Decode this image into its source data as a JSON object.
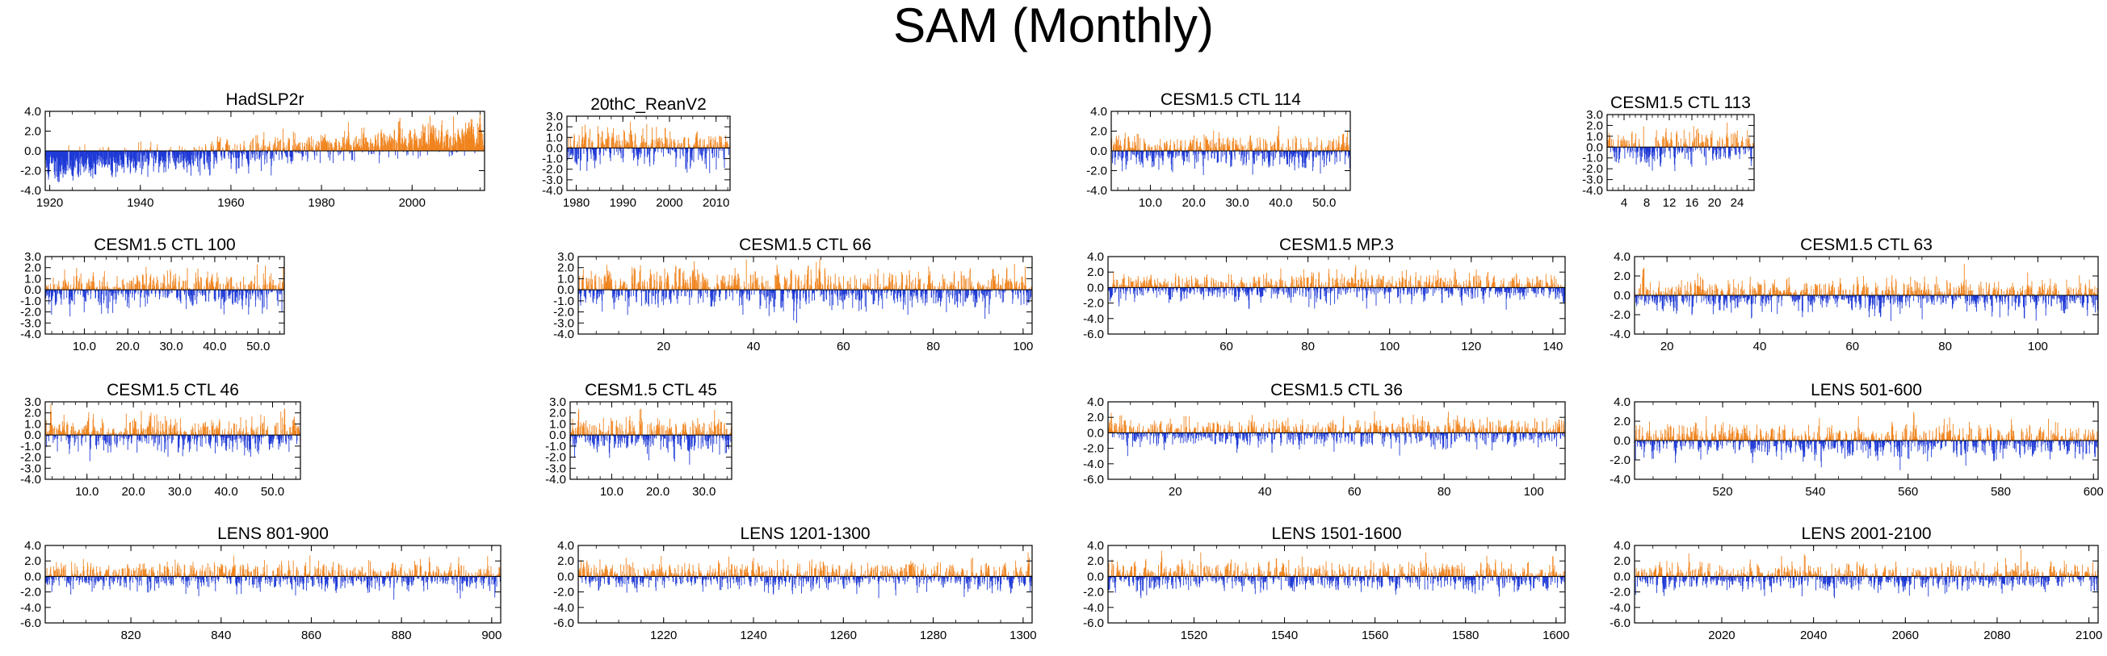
{
  "title": "SAM (Monthly)",
  "colors": {
    "positive": "#f0841e",
    "negative": "#1f3ad6",
    "axis": "#000000"
  },
  "chart_data": [
    {
      "type": "bar",
      "title": "HadSLP2r",
      "ylim": [
        -4,
        4
      ],
      "yticks": [
        "4.0",
        "2.0",
        "0.0",
        "-2.0",
        "-4.0"
      ],
      "xlim": [
        1919,
        2016
      ],
      "xticks": [
        1920,
        1940,
        1960,
        1980,
        2000
      ],
      "xticklabels": [
        "1920",
        "1940",
        "1960",
        "1980",
        "2000"
      ],
      "trend": 0.022,
      "amp": 0.75,
      "seed": 11,
      "n": 1150
    },
    {
      "type": "bar",
      "title": "20thC_ReanV2",
      "ylim": [
        -4,
        3
      ],
      "yticks": [
        "3.0",
        "2.0",
        "1.0",
        "0.0",
        "-1.0",
        "-2.0",
        "-3.0",
        "-4.0"
      ],
      "xlim": [
        1978,
        2013
      ],
      "xticks": [
        1980,
        1990,
        2000,
        2010
      ],
      "xticklabels": [
        "1980",
        "1990",
        "2000",
        "2010"
      ],
      "trend": 0.0,
      "amp": 0.8,
      "seed": 23,
      "n": 420
    },
    {
      "type": "bar",
      "title": "CESM1.5 CTL 114",
      "ylim": [
        -4,
        4
      ],
      "yticks": [
        "4.0",
        "2.0",
        "0.0",
        "-2.0",
        "-4.0"
      ],
      "xlim": [
        1,
        56
      ],
      "xticks": [
        10,
        20,
        30,
        40,
        50
      ],
      "xticklabels": [
        "10.0",
        "20.0",
        "30.0",
        "40.0",
        "50.0"
      ],
      "trend": 0.0,
      "amp": 0.8,
      "seed": 37,
      "n": 660
    },
    {
      "type": "bar",
      "title": "CESM1.5 CTL 113",
      "ylim": [
        -4,
        3
      ],
      "yticks": [
        "3.0",
        "2.0",
        "1.0",
        "0.0",
        "-1.0",
        "-2.0",
        "-3.0",
        "-4.0"
      ],
      "xlim": [
        1,
        27
      ],
      "xticks": [
        4,
        8,
        12,
        16,
        20,
        24
      ],
      "xticklabels": [
        "4",
        "8",
        "12",
        "16",
        "20",
        "24"
      ],
      "trend": 0.0,
      "amp": 0.8,
      "seed": 41,
      "n": 320
    },
    {
      "type": "bar",
      "title": "CESM1.5 CTL 100",
      "ylim": [
        -4,
        3
      ],
      "yticks": [
        "3.0",
        "2.0",
        "1.0",
        "0.0",
        "-1.0",
        "-2.0",
        "-3.0",
        "-4.0"
      ],
      "xlim": [
        1,
        56
      ],
      "xticks": [
        10,
        20,
        30,
        40,
        50
      ],
      "xticklabels": [
        "10.0",
        "20.0",
        "30.0",
        "40.0",
        "50.0"
      ],
      "trend": 0.0,
      "amp": 0.8,
      "seed": 53,
      "n": 660
    },
    {
      "type": "bar",
      "title": "CESM1.5 CTL 66",
      "ylim": [
        -4,
        3
      ],
      "yticks": [
        "3.0",
        "2.0",
        "1.0",
        "0.0",
        "-1.0",
        "-2.0",
        "-3.0",
        "-4.0"
      ],
      "xlim": [
        1,
        102
      ],
      "xticks": [
        20,
        40,
        60,
        80,
        100
      ],
      "xticklabels": [
        "20",
        "40",
        "60",
        "80",
        "100"
      ],
      "trend": 0.0,
      "amp": 0.8,
      "seed": 67,
      "n": 1200
    },
    {
      "type": "bar",
      "title": "CESM1.5 MP.3",
      "ylim": [
        -6,
        4
      ],
      "yticks": [
        "4.0",
        "2.0",
        "0.0",
        "-2.0",
        "-4.0",
        "-6.0"
      ],
      "xlim": [
        31,
        143
      ],
      "xticks": [
        60,
        80,
        100,
        120,
        140
      ],
      "xticklabels": [
        "60",
        "80",
        "100",
        "120",
        "140"
      ],
      "trend": 0.0,
      "amp": 0.85,
      "seed": 71,
      "n": 1300
    },
    {
      "type": "bar",
      "title": "CESM1.5 CTL 63",
      "ylim": [
        -4,
        4
      ],
      "yticks": [
        "4.0",
        "2.0",
        "0.0",
        "-2.0",
        "-4.0"
      ],
      "xlim": [
        13,
        113
      ],
      "xticks": [
        20,
        40,
        60,
        80,
        100
      ],
      "xticklabels": [
        "20",
        "40",
        "60",
        "80",
        "100"
      ],
      "trend": 0.0,
      "amp": 0.8,
      "seed": 83,
      "n": 1200
    },
    {
      "type": "bar",
      "title": "CESM1.5 CTL 46",
      "ylim": [
        -4,
        3
      ],
      "yticks": [
        "3.0",
        "2.0",
        "1.0",
        "0.0",
        "-1.0",
        "-2.0",
        "-3.0",
        "-4.0"
      ],
      "xlim": [
        1,
        56
      ],
      "xticks": [
        10,
        20,
        30,
        40,
        50
      ],
      "xticklabels": [
        "10.0",
        "20.0",
        "30.0",
        "40.0",
        "50.0"
      ],
      "trend": 0.0,
      "amp": 0.8,
      "seed": 97,
      "n": 660
    },
    {
      "type": "bar",
      "title": "CESM1.5 CTL 45",
      "ylim": [
        -4,
        3
      ],
      "yticks": [
        "3.0",
        "2.0",
        "1.0",
        "0.0",
        "-1.0",
        "-2.0",
        "-3.0",
        "-4.0"
      ],
      "xlim": [
        1,
        36
      ],
      "xticks": [
        10,
        20,
        30
      ],
      "xticklabels": [
        "10.0",
        "20.0",
        "30.0"
      ],
      "trend": 0.0,
      "amp": 0.8,
      "seed": 101,
      "n": 420
    },
    {
      "type": "bar",
      "title": "CESM1.5 CTL 36",
      "ylim": [
        -6,
        4
      ],
      "yticks": [
        "4.0",
        "2.0",
        "0.0",
        "-2.0",
        "-4.0",
        "-6.0"
      ],
      "xlim": [
        5,
        107
      ],
      "xticks": [
        20,
        40,
        60,
        80,
        100
      ],
      "xticklabels": [
        "20",
        "40",
        "60",
        "80",
        "100"
      ],
      "trend": 0.0,
      "amp": 0.85,
      "seed": 113,
      "n": 1200
    },
    {
      "type": "bar",
      "title": "LENS 501-600",
      "ylim": [
        -4,
        4
      ],
      "yticks": [
        "4.0",
        "2.0",
        "0.0",
        "-2.0",
        "-4.0"
      ],
      "xlim": [
        501,
        601
      ],
      "xticks": [
        520,
        540,
        560,
        580,
        600
      ],
      "xticklabels": [
        "520",
        "540",
        "560",
        "580",
        "600"
      ],
      "trend": 0.0,
      "amp": 0.8,
      "seed": 127,
      "n": 1200
    },
    {
      "type": "bar",
      "title": "LENS 801-900",
      "ylim": [
        -6,
        4
      ],
      "yticks": [
        "4.0",
        "2.0",
        "0.0",
        "-2.0",
        "-4.0",
        "-6.0"
      ],
      "xlim": [
        801,
        902
      ],
      "xticks": [
        820,
        840,
        860,
        880,
        900
      ],
      "xticklabels": [
        "820",
        "840",
        "860",
        "880",
        "900"
      ],
      "trend": 0.0,
      "amp": 0.85,
      "seed": 131,
      "n": 1200
    },
    {
      "type": "bar",
      "title": "LENS 1201-1300",
      "ylim": [
        -6,
        4
      ],
      "yticks": [
        "4.0",
        "2.0",
        "0.0",
        "-2.0",
        "-4.0",
        "-6.0"
      ],
      "xlim": [
        1201,
        1302
      ],
      "xticks": [
        1220,
        1240,
        1260,
        1280,
        1300
      ],
      "xticklabels": [
        "1220",
        "1240",
        "1260",
        "1280",
        "1300"
      ],
      "trend": 0.0,
      "amp": 0.85,
      "seed": 149,
      "n": 1200
    },
    {
      "type": "bar",
      "title": "LENS 1501-1600",
      "ylim": [
        -6,
        4
      ],
      "yticks": [
        "4.0",
        "2.0",
        "0.0",
        "-2.0",
        "-4.0",
        "-6.0"
      ],
      "xlim": [
        1501,
        1602
      ],
      "xticks": [
        1520,
        1540,
        1560,
        1580,
        1600
      ],
      "xticklabels": [
        "1520",
        "1540",
        "1560",
        "1580",
        "1600"
      ],
      "trend": 0.0,
      "amp": 0.85,
      "seed": 157,
      "n": 1200
    },
    {
      "type": "bar",
      "title": "LENS 2001-2100",
      "ylim": [
        -6,
        4
      ],
      "yticks": [
        "4.0",
        "2.0",
        "0.0",
        "-2.0",
        "-4.0",
        "-6.0"
      ],
      "xlim": [
        2001,
        2102
      ],
      "xticks": [
        2020,
        2040,
        2060,
        2080,
        2100
      ],
      "xticklabels": [
        "2020",
        "2040",
        "2060",
        "2080",
        "2100"
      ],
      "trend": 0.0,
      "amp": 0.85,
      "seed": 163,
      "n": 1200
    }
  ]
}
